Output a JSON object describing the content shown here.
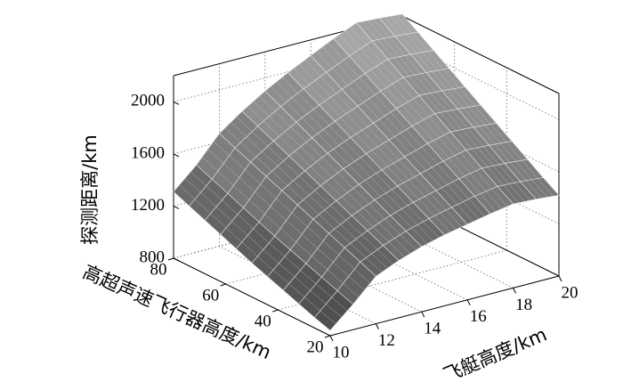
{
  "chart_data": {
    "type": "surface",
    "x": {
      "label": "飞艇高度/km",
      "range": [
        10,
        20
      ],
      "ticks": [
        10,
        12,
        14,
        16,
        18,
        20
      ]
    },
    "y": {
      "label": "高超声速飞行器高度/km",
      "range": [
        20,
        80
      ],
      "ticks": [
        20,
        40,
        60,
        80
      ]
    },
    "z": {
      "label": "探测距离/km",
      "range": [
        800,
        2200
      ],
      "ticks": [
        800,
        1200,
        1600,
        2000
      ]
    },
    "grid": true,
    "colormap": "gray",
    "surface": {
      "x_values": [
        10,
        11,
        12,
        13,
        14,
        15,
        16,
        17,
        18,
        19,
        20
      ],
      "y_values": [
        20,
        26,
        32,
        38,
        44,
        50,
        56,
        62,
        68,
        74,
        80
      ],
      "z_values": [
        [
          840,
          995,
          1165,
          1240,
          1300,
          1345,
          1380,
          1415,
          1445,
          1435,
          1420
        ],
        [
          880,
          1040,
          1215,
          1295,
          1360,
          1410,
          1450,
          1490,
          1520,
          1510,
          1495
        ],
        [
          925,
          1085,
          1265,
          1350,
          1420,
          1475,
          1520,
          1565,
          1600,
          1590,
          1575
        ],
        [
          970,
          1130,
          1315,
          1405,
          1480,
          1540,
          1590,
          1640,
          1680,
          1670,
          1655
        ],
        [
          1015,
          1175,
          1365,
          1460,
          1540,
          1605,
          1660,
          1715,
          1760,
          1750,
          1735
        ],
        [
          1060,
          1220,
          1415,
          1515,
          1600,
          1670,
          1730,
          1790,
          1840,
          1830,
          1815
        ],
        [
          1110,
          1270,
          1465,
          1570,
          1660,
          1735,
          1800,
          1865,
          1920,
          1910,
          1895
        ],
        [
          1160,
          1320,
          1515,
          1625,
          1720,
          1800,
          1870,
          1940,
          2000,
          1990,
          1975
        ],
        [
          1210,
          1370,
          1565,
          1680,
          1780,
          1865,
          1940,
          2015,
          2080,
          2070,
          2055
        ],
        [
          1260,
          1420,
          1615,
          1735,
          1840,
          1930,
          2010,
          2090,
          2160,
          2150,
          2135
        ],
        [
          1310,
          1470,
          1665,
          1790,
          1900,
          1995,
          2080,
          2165,
          2240,
          2230,
          2215
        ]
      ]
    }
  }
}
